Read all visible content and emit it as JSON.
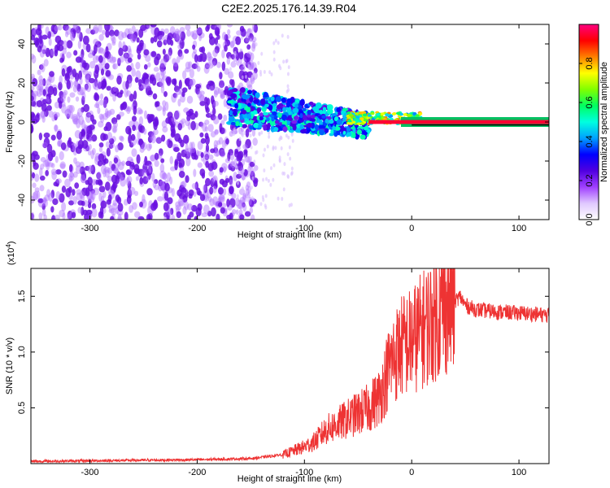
{
  "title": "C2E2.2025.176.14.39.R04",
  "colors": {
    "spectrogram_sparse": "#b070ff",
    "spectrogram_dense": "#6a10e0",
    "snr_line": "#ee3333",
    "frame": "#000000"
  },
  "chart_data": [
    {
      "type": "heatmap",
      "xlabel": "Height of straight line (km)",
      "ylabel": "Frequency (Hz)",
      "xlim": [
        -355,
        128
      ],
      "ylim": [
        -50,
        50
      ],
      "xticks": [
        -300,
        -200,
        -100,
        0,
        100
      ],
      "yticks": [
        -40,
        -20,
        0,
        20,
        40
      ],
      "xtick_labels": [
        "-300",
        "-200",
        "-100",
        "0",
        "100"
      ],
      "ytick_labels": [
        "-40",
        "-20",
        "0",
        "20",
        "40"
      ],
      "grid": false,
      "colorbar": {
        "label": "Normalized spectral amplitude",
        "range": [
          0.0,
          1.0
        ],
        "ticks": [
          0.0,
          0.2,
          0.4,
          0.6,
          0.8
        ],
        "tick_labels": [
          "0.0",
          "0.2",
          "0.4",
          "0.6",
          "0.8"
        ],
        "colormap": [
          "#ffffff",
          "#e0c8ff",
          "#a040ff",
          "#5000e0",
          "#0000ff",
          "#00a0ff",
          "#00ffe0",
          "#00ff60",
          "#80ff00",
          "#ffff00",
          "#ff8000",
          "#ff0000",
          "#ff0080"
        ]
      },
      "regions": [
        {
          "name": "broadband noise",
          "x": [
            -355,
            -170
          ],
          "freq": [
            -50,
            50
          ],
          "amplitude": 0.25
        },
        {
          "name": "transition band",
          "x": [
            -170,
            -40
          ],
          "freq": [
            -12,
            15
          ],
          "amplitude": 0.45
        },
        {
          "name": "carrier line",
          "x": [
            -40,
            128
          ],
          "freq": [
            -1,
            1
          ],
          "amplitude": 0.95
        }
      ]
    },
    {
      "type": "line",
      "xlabel": "Height of straight line (km)",
      "ylabel": "SNR (10 * v/v)",
      "y_multiplier": "(x10^4)",
      "y_multiplier_base": "(x10",
      "y_multiplier_exp": "4",
      "y_multiplier_close": ")",
      "xlim": [
        -355,
        128
      ],
      "ylim": [
        0,
        17500
      ],
      "xticks": [
        -300,
        -200,
        -100,
        0,
        100
      ],
      "yticks": [
        5000,
        10000,
        15000
      ],
      "xtick_labels": [
        "-300",
        "-200",
        "-100",
        "0",
        "100"
      ],
      "ytick_labels": [
        "0.5",
        "1.0",
        "1.5"
      ],
      "grid": false,
      "series": [
        {
          "x": [
            -355,
            -300,
            -250,
            -200,
            -150,
            -120,
            -100,
            -90,
            -80,
            -70,
            -60,
            -50,
            -40,
            -30,
            -20,
            -10,
            0,
            10,
            20,
            30,
            40,
            45,
            50,
            60,
            80,
            100,
            128
          ],
          "y": [
            200,
            250,
            300,
            350,
            450,
            800,
            1500,
            2000,
            3000,
            3500,
            4000,
            4500,
            5000,
            6000,
            9000,
            10500,
            11000,
            12000,
            13000,
            14000,
            14500,
            15000,
            14200,
            13800,
            13600,
            13500,
            13300
          ]
        }
      ]
    }
  ]
}
